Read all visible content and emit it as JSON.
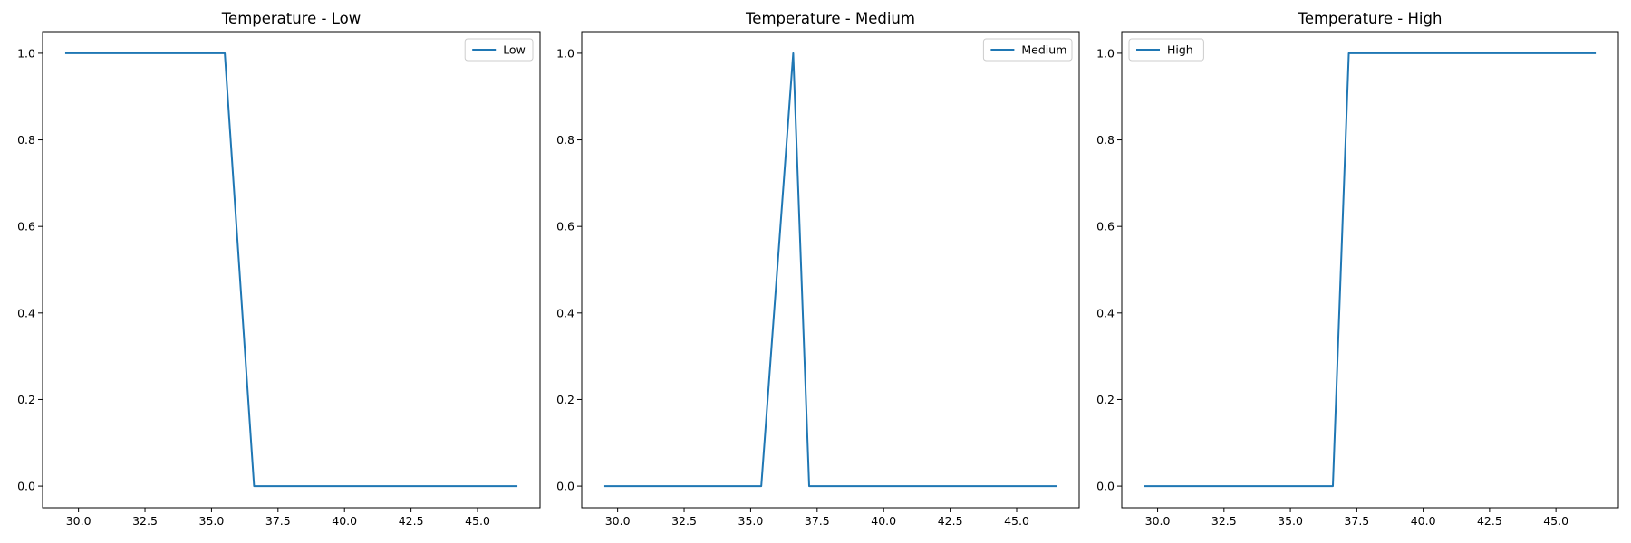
{
  "chart_data": [
    {
      "type": "line",
      "title": "Temperature - Low",
      "xlabel": "",
      "ylabel": "",
      "xlim": [
        28.65,
        47.35
      ],
      "ylim": [
        -0.05,
        1.05
      ],
      "xticks": [
        30.0,
        32.5,
        35.0,
        37.5,
        40.0,
        42.5,
        45.0
      ],
      "xtick_labels": [
        "30.0",
        "32.5",
        "35.0",
        "37.5",
        "40.0",
        "42.5",
        "45.0"
      ],
      "yticks": [
        0.0,
        0.2,
        0.4,
        0.6,
        0.8,
        1.0
      ],
      "ytick_labels": [
        "0.0",
        "0.2",
        "0.4",
        "0.6",
        "0.8",
        "1.0"
      ],
      "grid": false,
      "legend_position": "top-right",
      "series": [
        {
          "name": "Low",
          "color": "#1f77b4",
          "x": [
            29.5,
            35.5,
            36.6,
            46.5
          ],
          "y": [
            1.0,
            1.0,
            0.0,
            0.0
          ]
        }
      ]
    },
    {
      "type": "line",
      "title": "Temperature - Medium",
      "xlabel": "",
      "ylabel": "",
      "xlim": [
        28.65,
        47.35
      ],
      "ylim": [
        -0.05,
        1.05
      ],
      "xticks": [
        30.0,
        32.5,
        35.0,
        37.5,
        40.0,
        42.5,
        45.0
      ],
      "xtick_labels": [
        "30.0",
        "32.5",
        "35.0",
        "37.5",
        "40.0",
        "42.5",
        "45.0"
      ],
      "yticks": [
        0.0,
        0.2,
        0.4,
        0.6,
        0.8,
        1.0
      ],
      "ytick_labels": [
        "0.0",
        "0.2",
        "0.4",
        "0.6",
        "0.8",
        "1.0"
      ],
      "grid": false,
      "legend_position": "top-right",
      "series": [
        {
          "name": "Medium",
          "color": "#1f77b4",
          "x": [
            29.5,
            35.4,
            36.6,
            37.2,
            46.5
          ],
          "y": [
            0.0,
            0.0,
            1.0,
            0.0,
            0.0
          ]
        }
      ]
    },
    {
      "type": "line",
      "title": "Temperature - High",
      "xlabel": "",
      "ylabel": "",
      "xlim": [
        28.65,
        47.35
      ],
      "ylim": [
        -0.05,
        1.05
      ],
      "xticks": [
        30.0,
        32.5,
        35.0,
        37.5,
        40.0,
        42.5,
        45.0
      ],
      "xtick_labels": [
        "30.0",
        "32.5",
        "35.0",
        "37.5",
        "40.0",
        "42.5",
        "45.0"
      ],
      "yticks": [
        0.0,
        0.2,
        0.4,
        0.6,
        0.8,
        1.0
      ],
      "ytick_labels": [
        "0.0",
        "0.2",
        "0.4",
        "0.6",
        "0.8",
        "1.0"
      ],
      "grid": false,
      "legend_position": "top-left",
      "series": [
        {
          "name": "High",
          "color": "#1f77b4",
          "x": [
            29.5,
            36.6,
            37.2,
            46.5
          ],
          "y": [
            0.0,
            0.0,
            1.0,
            1.0
          ]
        }
      ]
    }
  ]
}
